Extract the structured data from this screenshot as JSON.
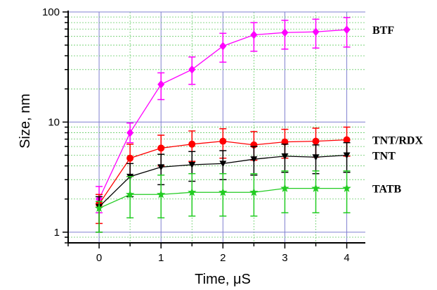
{
  "chart_data": {
    "type": "line",
    "title": "",
    "xlabel": "Time, μS",
    "ylabel": "Size, nm",
    "xlim": [
      -0.5,
      4.3
    ],
    "ylim": [
      0.8,
      100
    ],
    "yscale": "log",
    "x_ticks": [
      0,
      1,
      2,
      3,
      4
    ],
    "x_tick_labels": [
      "0",
      "1",
      "2",
      "3",
      "4"
    ],
    "y_ticks": [
      1,
      10,
      100
    ],
    "y_tick_labels": [
      "1",
      "10",
      "100"
    ],
    "grid": true,
    "x": [
      0,
      0.5,
      1,
      1.5,
      2,
      2.5,
      3,
      3.5,
      4
    ],
    "series": [
      {
        "name": "BTF",
        "color": "#ff00ff",
        "marker": "diamond",
        "values": [
          2.0,
          8.0,
          22,
          30,
          49,
          62,
          65,
          66,
          69
        ],
        "err_lo": [
          1.5,
          6.5,
          16,
          22,
          35,
          44,
          46,
          47,
          48
        ],
        "err_hi": [
          2.6,
          9.8,
          28,
          39,
          64,
          80,
          84,
          86,
          89
        ]
      },
      {
        "name": "TNT/RDX",
        "color": "#ff0000",
        "marker": "circle",
        "values": [
          1.8,
          4.7,
          5.8,
          6.3,
          6.7,
          6.2,
          6.6,
          6.7,
          6.9
        ],
        "err_lo": [
          1.2,
          3.2,
          4.0,
          4.4,
          4.7,
          4.5,
          4.7,
          4.8,
          4.9
        ],
        "err_hi": [
          2.2,
          6.3,
          7.6,
          8.3,
          8.7,
          8.2,
          8.6,
          8.8,
          9.0
        ]
      },
      {
        "name": "TNT",
        "color": "#000000",
        "marker": "triangle-down",
        "values": [
          1.7,
          3.2,
          3.9,
          4.1,
          4.2,
          4.6,
          4.9,
          4.8,
          5.0
        ],
        "err_lo": [
          1.0,
          2.1,
          2.7,
          2.9,
          3.0,
          3.3,
          3.5,
          3.4,
          3.5
        ],
        "err_hi": [
          2.1,
          4.2,
          5.1,
          5.4,
          5.5,
          6.0,
          6.3,
          6.2,
          6.5
        ]
      },
      {
        "name": "TATB",
        "color": "#22cc22",
        "marker": "star",
        "values": [
          1.65,
          2.2,
          2.2,
          2.3,
          2.3,
          2.3,
          2.5,
          2.5,
          2.5
        ],
        "err_lo": [
          1.0,
          1.35,
          1.35,
          1.4,
          1.4,
          1.4,
          1.5,
          1.5,
          1.5
        ],
        "err_hi": [
          1.9,
          3.2,
          3.3,
          3.4,
          3.4,
          3.4,
          3.6,
          3.6,
          3.6
        ]
      }
    ]
  }
}
